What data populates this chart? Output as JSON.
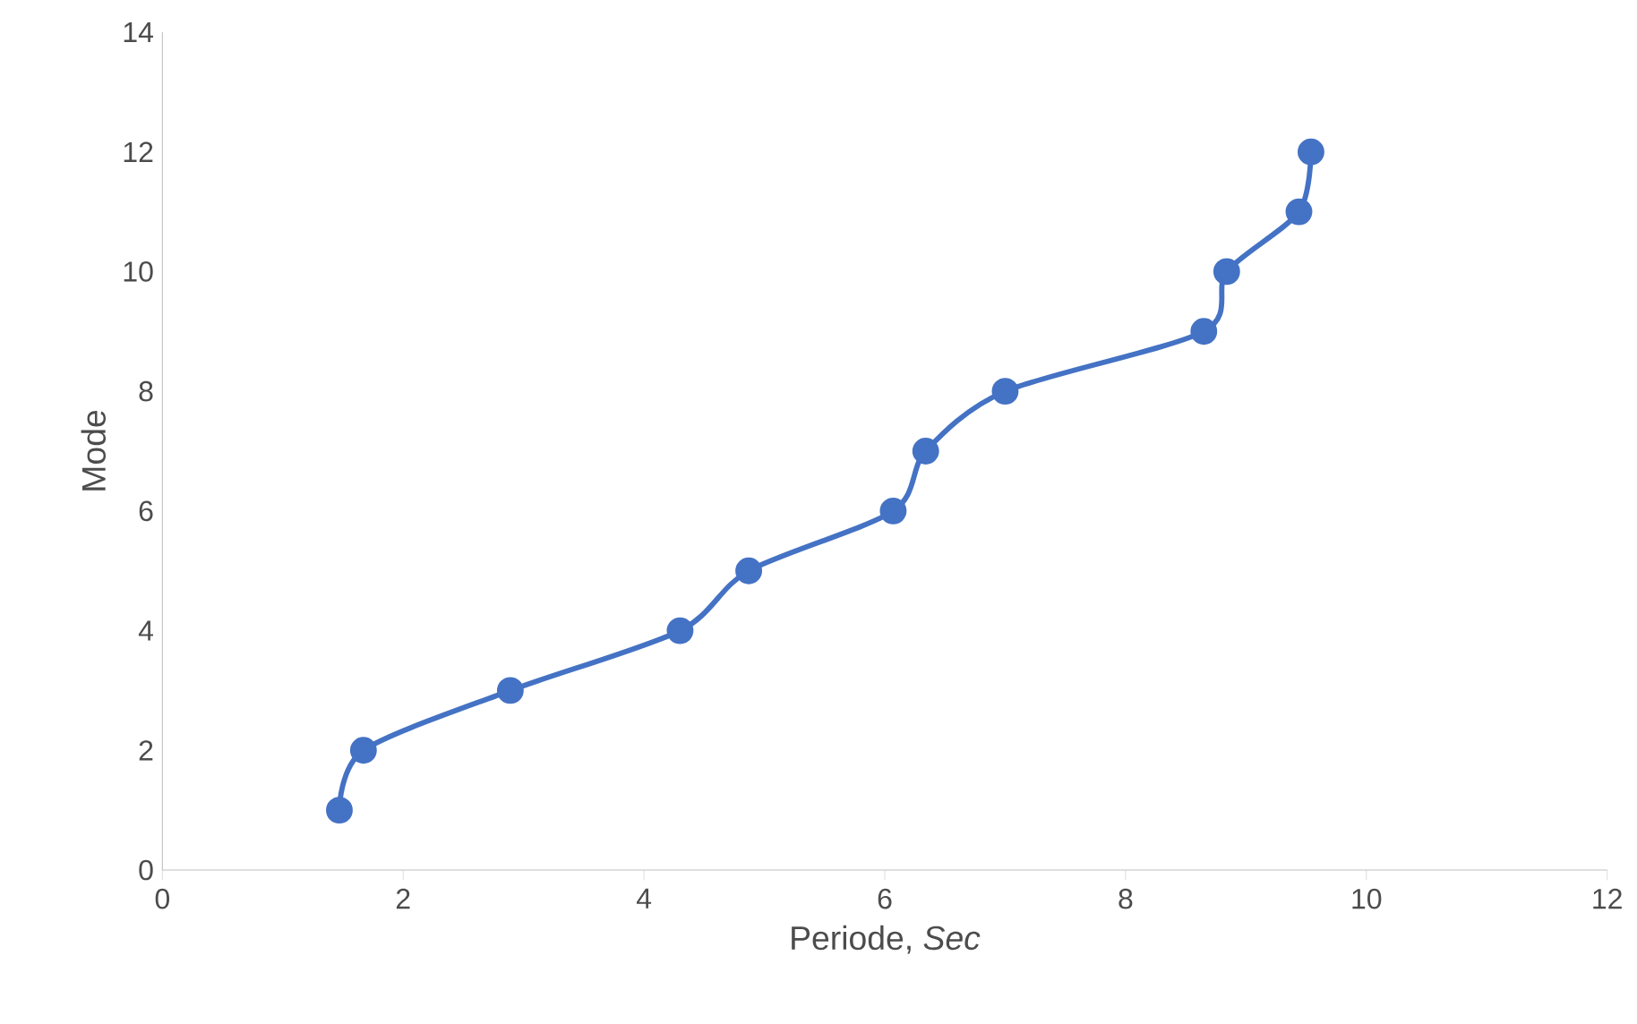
{
  "chart_data": {
    "type": "line",
    "xlabel": "Periode, *Sec*",
    "ylabel": "Mode",
    "x": [
      1.47,
      1.67,
      2.89,
      4.3,
      4.87,
      6.07,
      6.34,
      7.0,
      8.65,
      8.84,
      9.44,
      9.54
    ],
    "series": [
      {
        "color": "#4472c4",
        "values": [
          1,
          2,
          3,
          4,
          5,
          6,
          7,
          8,
          9,
          10,
          11,
          12
        ]
      }
    ],
    "xlim": [
      0,
      12
    ],
    "xticks": [
      0,
      2,
      4,
      6,
      8,
      10,
      12
    ],
    "ylim": [
      0,
      14
    ],
    "yticks": [
      0,
      2,
      4,
      6,
      8,
      10,
      12,
      14
    ],
    "grid": false,
    "marker": "circle",
    "line_style": "solid"
  }
}
